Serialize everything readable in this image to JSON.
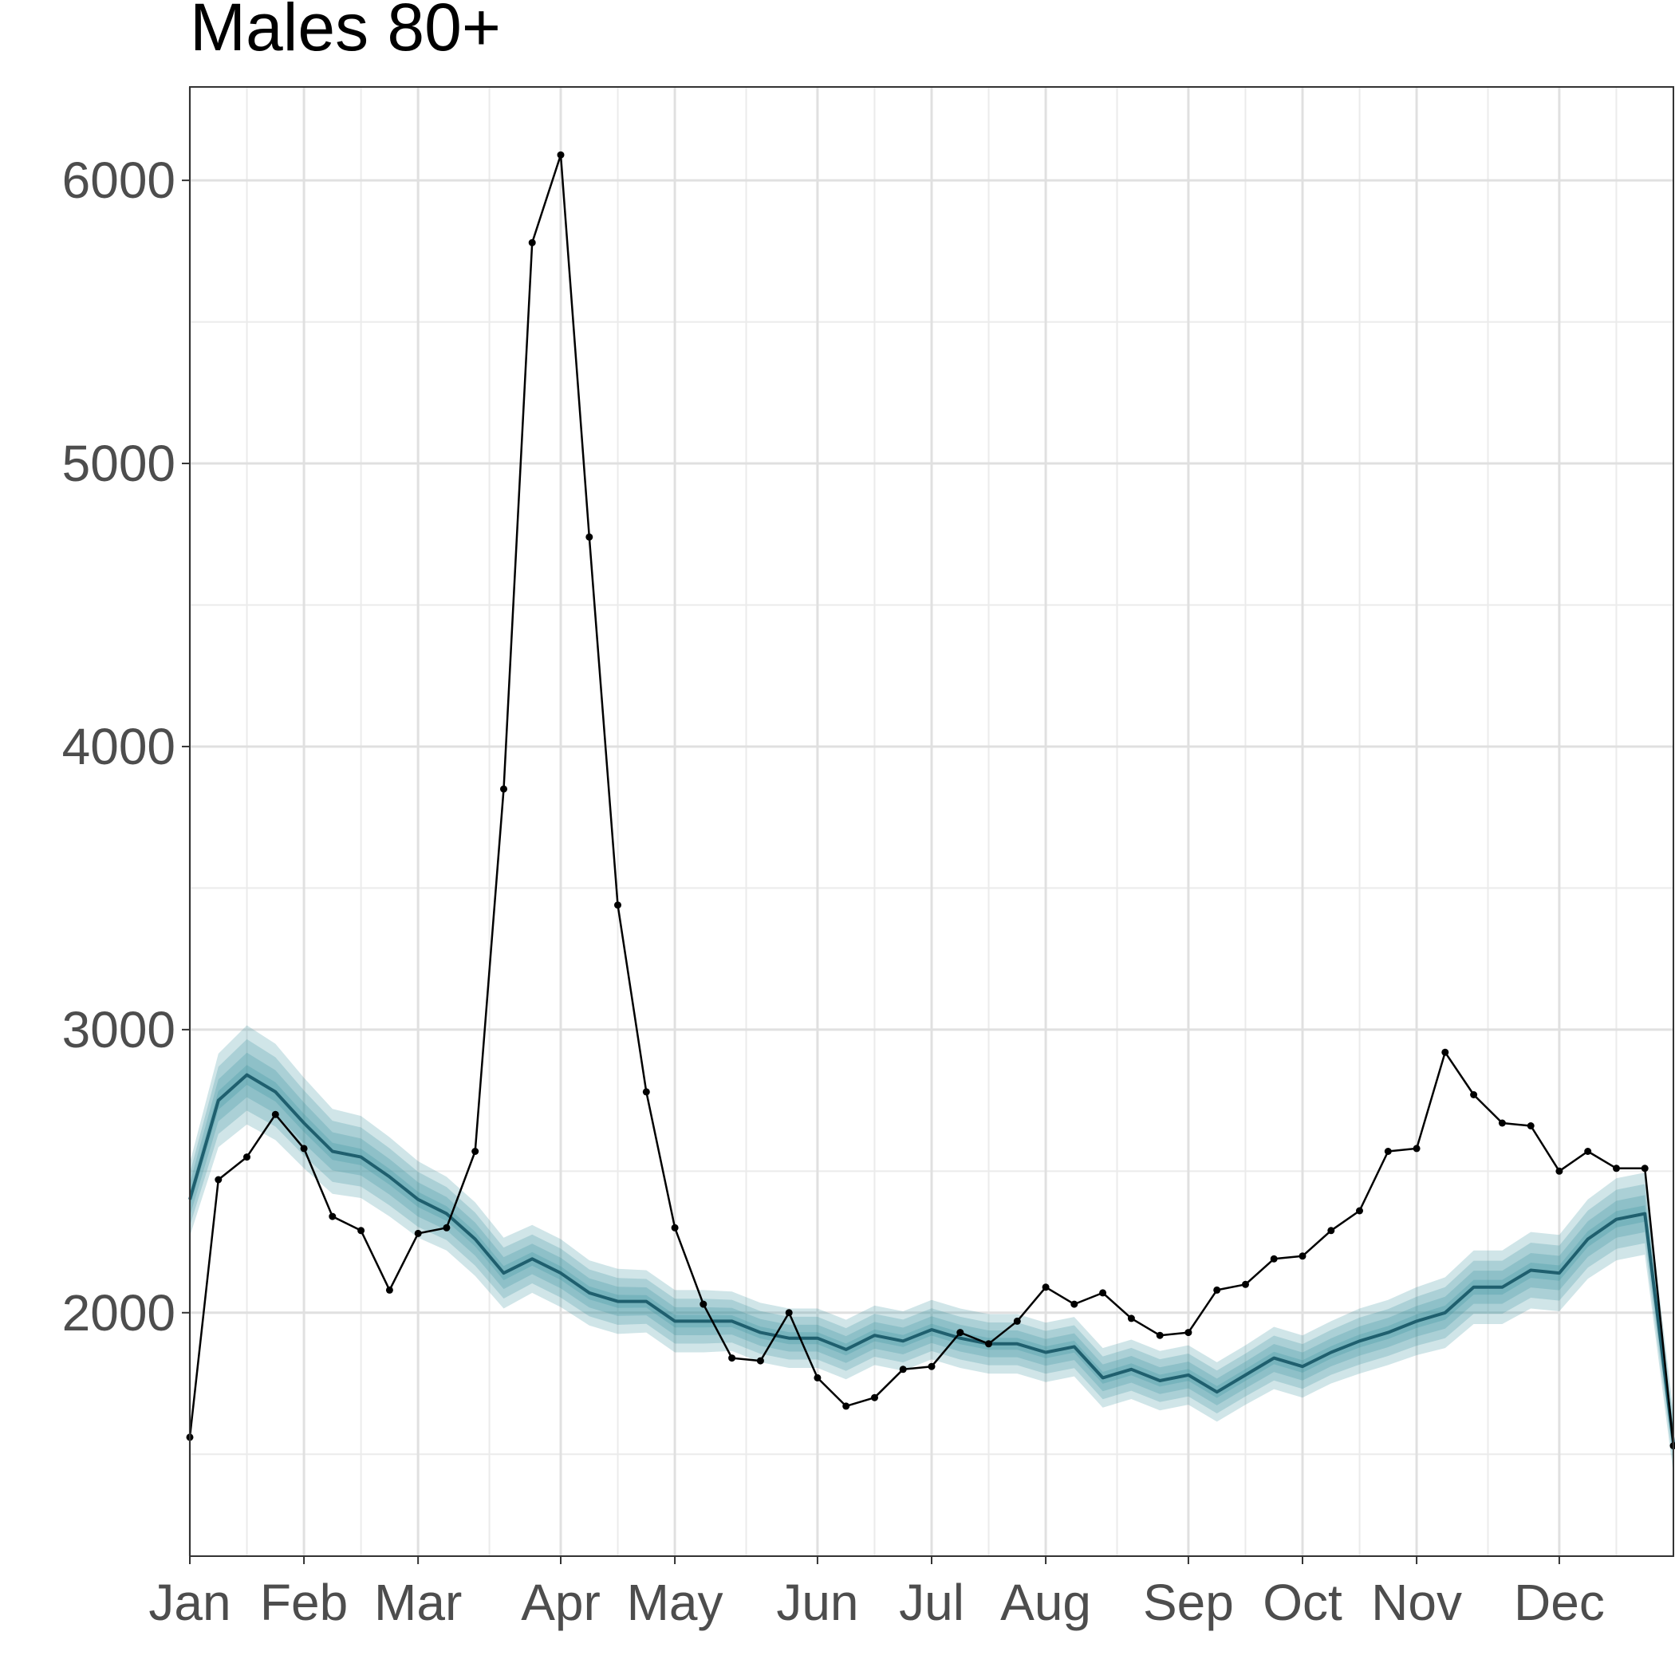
{
  "chart_data": {
    "type": "line",
    "title": "Males 80+",
    "xlabel": "",
    "ylabel": "",
    "x_tick_labels": [
      "Jan",
      "Feb",
      "Mar",
      "Apr",
      "May",
      "Jun",
      "Jul",
      "Aug",
      "Sep",
      "Oct",
      "Nov",
      "Dec"
    ],
    "x_tick_weeks": [
      0,
      4,
      8,
      13,
      17,
      22,
      26,
      30,
      35,
      39,
      43,
      48
    ],
    "xlim": [
      0,
      52
    ],
    "y_tick_labels": [
      "2000",
      "3000",
      "4000",
      "5000",
      "6000"
    ],
    "y_ticks": [
      2000,
      3000,
      4000,
      5000,
      6000
    ],
    "ylim": [
      1140,
      6330
    ],
    "grid": true,
    "series": [
      {
        "kind": "observed",
        "color": "#000000",
        "values": [
          1560,
          2470,
          2550,
          2700,
          2580,
          2340,
          2290,
          2080,
          2280,
          2300,
          2570,
          3850,
          5780,
          6090,
          4740,
          3440,
          2780,
          2300,
          2030,
          1840,
          1830,
          2000,
          1770,
          1670,
          1700,
          1800,
          1810,
          1930,
          1890,
          1970,
          2090,
          2030,
          2070,
          1980,
          1920,
          1930,
          2080,
          2100,
          2190,
          2200,
          2290,
          2360,
          2570,
          2580,
          2920,
          2770,
          2670,
          2660,
          2500,
          2570,
          2510,
          2510,
          1530
        ]
      },
      {
        "kind": "expected",
        "color": "#1f5f6e",
        "values": [
          2400,
          2750,
          2840,
          2780,
          2670,
          2570,
          2550,
          2480,
          2400,
          2350,
          2260,
          2140,
          2190,
          2140,
          2070,
          2040,
          2040,
          1970,
          1970,
          1970,
          1930,
          1910,
          1910,
          1870,
          1920,
          1900,
          1940,
          1910,
          1890,
          1890,
          1860,
          1880,
          1770,
          1800,
          1760,
          1780,
          1720,
          1780,
          1840,
          1810,
          1860,
          1900,
          1930,
          1970,
          2000,
          2090,
          2090,
          2150,
          2140,
          2260,
          2330,
          2350,
          1540
        ]
      }
    ],
    "bands": {
      "color": "#2a8a95",
      "outer_half_width": [
        130,
        165,
        175,
        170,
        160,
        150,
        145,
        140,
        135,
        130,
        130,
        125,
        120,
        120,
        115,
        115,
        110,
        110,
        110,
        105,
        105,
        105,
        105,
        105,
        105,
        105,
        105,
        105,
        105,
        105,
        105,
        105,
        105,
        105,
        105,
        105,
        105,
        105,
        110,
        110,
        110,
        115,
        115,
        120,
        125,
        130,
        130,
        135,
        135,
        140,
        145,
        145,
        110
      ],
      "levels": [
        1.0,
        0.72,
        0.45,
        0.2
      ]
    }
  }
}
